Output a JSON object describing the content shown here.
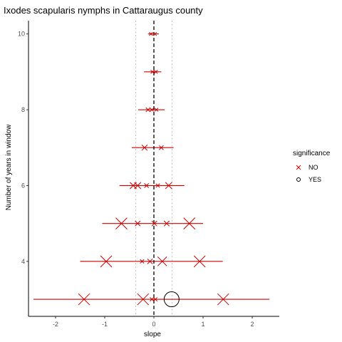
{
  "chart_data": {
    "type": "scatter",
    "title": "Ixodes scapularis nymphs in Cattaraugus county",
    "xlabel": "slope",
    "ylabel": "Number of years in window",
    "xlim": [
      -2.55,
      2.55
    ],
    "ylim": [
      2.55,
      10.35
    ],
    "x_ticks": [
      -2,
      -1,
      0,
      1,
      2
    ],
    "y_ticks": [
      4,
      6,
      8,
      10
    ],
    "x_tick_labels": [
      "-2",
      "-1",
      "0",
      "1",
      "2"
    ],
    "y_tick_labels": [
      "4",
      "6",
      "8",
      "10"
    ],
    "reference_lines": {
      "solid_dashed_x": 0,
      "dotted_x": [
        -0.37,
        0.37
      ]
    },
    "grid": false,
    "legend": {
      "title": "significance",
      "position": "right",
      "entries": [
        {
          "label": "NO",
          "marker": "x",
          "color": "#cc0000"
        },
        {
          "label": "YES",
          "marker": "circle",
          "color": "#000000"
        }
      ]
    },
    "colors": {
      "interval": "#cc0000",
      "no_marker": "#cc0000",
      "yes_marker": "#000000",
      "reference": "#000000",
      "dotted": "#bfbfbf"
    },
    "intervals": [
      {
        "y": 10,
        "xmin": -0.12,
        "xmax": 0.1
      },
      {
        "y": 9,
        "xmin": -0.2,
        "xmax": 0.15
      },
      {
        "y": 8,
        "xmin": -0.32,
        "xmax": 0.22
      },
      {
        "y": 7,
        "xmin": -0.45,
        "xmax": 0.4
      },
      {
        "y": 6,
        "xmin": -0.7,
        "xmax": 0.62
      },
      {
        "y": 5,
        "xmin": -1.05,
        "xmax": 1.0
      },
      {
        "y": 4,
        "xmin": -1.5,
        "xmax": 1.4
      },
      {
        "y": 3,
        "xmin": -2.45,
        "xmax": 2.35
      }
    ],
    "points": [
      {
        "x": -0.06,
        "y": 10,
        "weight": 0.1,
        "significance": "NO"
      },
      {
        "x": 0.02,
        "y": 10,
        "weight": 0.1,
        "significance": "NO"
      },
      {
        "x": -0.03,
        "y": 9,
        "weight": 0.1,
        "significance": "NO"
      },
      {
        "x": 0.04,
        "y": 9,
        "weight": 0.1,
        "significance": "NO"
      },
      {
        "x": -0.12,
        "y": 8,
        "weight": 0.2,
        "significance": "NO"
      },
      {
        "x": -0.04,
        "y": 8,
        "weight": 0.1,
        "significance": "NO"
      },
      {
        "x": 0.05,
        "y": 8,
        "weight": 0.1,
        "significance": "NO"
      },
      {
        "x": -0.19,
        "y": 7,
        "weight": 0.35,
        "significance": "NO"
      },
      {
        "x": 0.15,
        "y": 7,
        "weight": 0.2,
        "significance": "NO"
      },
      {
        "x": -0.42,
        "y": 6,
        "weight": 0.45,
        "significance": "NO"
      },
      {
        "x": -0.33,
        "y": 6,
        "weight": 0.45,
        "significance": "NO"
      },
      {
        "x": -0.15,
        "y": 6,
        "weight": 0.2,
        "significance": "NO"
      },
      {
        "x": 0.08,
        "y": 6,
        "weight": 0.15,
        "significance": "NO"
      },
      {
        "x": 0.3,
        "y": 6,
        "weight": 0.45,
        "significance": "NO"
      },
      {
        "x": -0.66,
        "y": 5,
        "weight": 1.0,
        "significance": "NO"
      },
      {
        "x": -0.33,
        "y": 5,
        "weight": 0.3,
        "significance": "NO"
      },
      {
        "x": 0.01,
        "y": 5,
        "weight": 0.3,
        "significance": "NO"
      },
      {
        "x": 0.26,
        "y": 5,
        "weight": 0.3,
        "significance": "NO"
      },
      {
        "x": 0.72,
        "y": 5,
        "weight": 1.0,
        "significance": "NO"
      },
      {
        "x": -0.97,
        "y": 4,
        "weight": 1.0,
        "significance": "NO"
      },
      {
        "x": -0.24,
        "y": 4,
        "weight": 0.15,
        "significance": "NO"
      },
      {
        "x": -0.08,
        "y": 4,
        "weight": 0.3,
        "significance": "NO"
      },
      {
        "x": 0.17,
        "y": 4,
        "weight": 0.75,
        "significance": "NO"
      },
      {
        "x": 0.93,
        "y": 4,
        "weight": 1.0,
        "significance": "NO"
      },
      {
        "x": -1.42,
        "y": 3,
        "weight": 1.0,
        "significance": "NO"
      },
      {
        "x": -0.22,
        "y": 3,
        "weight": 1.0,
        "significance": "NO"
      },
      {
        "x": -0.04,
        "y": 3,
        "weight": 0.15,
        "significance": "NO"
      },
      {
        "x": 0.03,
        "y": 3,
        "weight": 0.15,
        "significance": "NO"
      },
      {
        "x": 0.36,
        "y": 3,
        "weight": 1.0,
        "significance": "YES"
      },
      {
        "x": 1.41,
        "y": 3,
        "weight": 1.0,
        "significance": "NO"
      }
    ]
  }
}
